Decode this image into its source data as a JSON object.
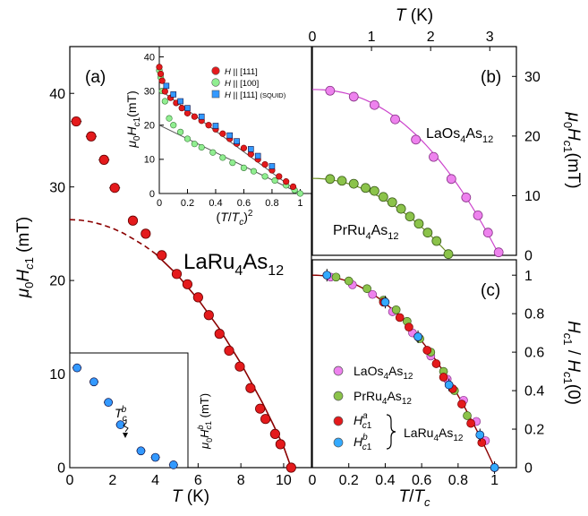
{
  "chart_data": [
    {
      "panel": "(a)",
      "type": "scatter",
      "title": "LaRu4As12",
      "xlabel": "T (K)",
      "ylabel": "μ0Hc1 (mT)",
      "xlim": [
        0,
        11.3
      ],
      "ylim": [
        0,
        45
      ],
      "xticks": [
        0,
        2,
        4,
        6,
        8,
        10
      ],
      "yticks": [
        0,
        10,
        20,
        30,
        40
      ],
      "series": [
        {
          "type": "scatter",
          "color": "#e41a1c",
          "errorbars": true,
          "x": [
            0.3,
            1.0,
            1.6,
            2.1,
            2.95,
            3.55,
            4.3,
            5.0,
            5.5,
            6.0,
            6.5,
            7.0,
            7.45,
            7.95,
            8.45,
            8.9,
            9.15,
            9.6,
            9.85,
            10.35
          ],
          "y": [
            37.0,
            35.4,
            32.9,
            29.9,
            26.4,
            25.0,
            22.7,
            20.7,
            19.6,
            18.2,
            16.3,
            14.3,
            12.5,
            10.8,
            8.5,
            6.3,
            5.2,
            3.6,
            2.5,
            0.0
          ]
        },
        {
          "type": "line",
          "style": "dashed",
          "color": "#8b0000",
          "x": [
            0,
            0.5,
            1.0,
            1.5,
            2.0,
            2.5,
            3.0,
            3.5,
            4.0
          ],
          "y": [
            26.5,
            26.45,
            26.27,
            25.98,
            25.58,
            25.06,
            24.4,
            23.7,
            22.87
          ]
        },
        {
          "type": "line",
          "style": "solid",
          "color": "#8b0000",
          "x": [
            4.0,
            5.0,
            6.0,
            7.0,
            8.0,
            9.0,
            9.5,
            10.0,
            10.35
          ],
          "y": [
            22.87,
            20.67,
            17.98,
            14.82,
            11.14,
            6.97,
            4.67,
            2.23,
            0.0
          ]
        }
      ]
    },
    {
      "panel": "inset-top",
      "type": "scatter",
      "xlabel": "(T/Tc)^2",
      "ylabel": "μ0Hc1 (mT)",
      "xlim": [
        0,
        1.08
      ],
      "ylim": [
        0,
        43
      ],
      "xticks": [
        0,
        0.2,
        0.4,
        0.6,
        0.8,
        1
      ],
      "yticks": [
        0,
        10,
        20,
        30,
        40
      ],
      "legend": [
        {
          "label": "H || [111]",
          "marker": "circle",
          "color": "#e41a1c"
        },
        {
          "label": "H || [100]",
          "marker": "circle",
          "color": "#90ee90"
        },
        {
          "label": "H || [111] (SQUID)",
          "marker": "square",
          "color": "#3399ff"
        }
      ],
      "series": [
        {
          "name": "H || [111]",
          "x": [
            0.0,
            0.01,
            0.02,
            0.04,
            0.08,
            0.12,
            0.16,
            0.2,
            0.25,
            0.3,
            0.35,
            0.4,
            0.45,
            0.5,
            0.55,
            0.6,
            0.65,
            0.7,
            0.75,
            0.8,
            0.85,
            0.9,
            0.95
          ],
          "y": [
            37.0,
            35.0,
            33.0,
            29.9,
            28.0,
            26.5,
            25.0,
            23.5,
            22.5,
            21.3,
            20.0,
            18.8,
            17.5,
            16.0,
            14.6,
            13.3,
            11.5,
            10.0,
            8.5,
            6.8,
            5.0,
            3.5,
            2.0
          ]
        },
        {
          "name": "H || [100]",
          "x": [
            0.0,
            0.01,
            0.02,
            0.04,
            0.07,
            0.1,
            0.15,
            0.2,
            0.25,
            0.3,
            0.38,
            0.45,
            0.52,
            0.6,
            0.67,
            0.75,
            0.82,
            0.9,
            0.96,
            1.0
          ],
          "y": [
            36.0,
            34.0,
            30.0,
            27.0,
            22.0,
            20.0,
            18.0,
            16.0,
            14.5,
            13.5,
            12.0,
            10.5,
            9.0,
            7.5,
            6.5,
            5.0,
            3.8,
            2.4,
            1.0,
            0.0
          ]
        },
        {
          "name": "H || [111] (SQUID)",
          "x": [
            0.05,
            0.1,
            0.15,
            0.2,
            0.3,
            0.4,
            0.5,
            0.55,
            0.65,
            0.7,
            0.8
          ],
          "y": [
            31.5,
            29.0,
            27.0,
            25.0,
            22.5,
            19.8,
            17.0,
            15.3,
            13.0,
            11.0,
            8.0
          ]
        }
      ]
    },
    {
      "panel": "inset-bottom",
      "type": "scatter",
      "ylabel": "μ0Hc1^b (mT)",
      "annotation": "Tc^b",
      "xlim": [
        0,
        4.9
      ],
      "ylim": [
        0,
        12.3
      ],
      "series": [
        {
          "color": "#3399ff",
          "x": [
            0.3,
            1.0,
            1.6,
            2.1,
            2.95,
            3.55,
            4.3
          ],
          "y": [
            10.7,
            9.2,
            7.0,
            4.6,
            1.8,
            1.1,
            0.3
          ]
        }
      ]
    },
    {
      "panel": "(b)",
      "type": "scatter",
      "xlabel": "T (K)",
      "ylabel": "μ0Hc1 (mT)",
      "xlim": [
        0,
        3.45
      ],
      "ylim": [
        0,
        35
      ],
      "xticks": [
        0,
        1,
        2,
        3
      ],
      "yticks": [
        0,
        10,
        20,
        30
      ],
      "series": [
        {
          "name": "LaOs4As12",
          "color": "#ee82ee",
          "x": [
            0.3,
            0.7,
            1.05,
            1.4,
            1.75,
            2.05,
            2.35,
            2.6,
            2.8,
            2.97,
            3.15
          ],
          "y": [
            27.6,
            26.6,
            25.2,
            22.8,
            19.4,
            16.5,
            12.8,
            9.7,
            6.7,
            3.8,
            0.5
          ]
        },
        {
          "name": "PrRu4As12",
          "color": "#8bc34a",
          "x": [
            0.3,
            0.5,
            0.7,
            0.9,
            1.05,
            1.2,
            1.35,
            1.5,
            1.65,
            1.8,
            1.95,
            2.1,
            2.3
          ],
          "y": [
            12.8,
            12.5,
            12.0,
            11.3,
            10.8,
            9.8,
            8.9,
            7.8,
            6.5,
            5.3,
            3.8,
            2.4,
            0.2
          ]
        }
      ]
    },
    {
      "panel": "(c)",
      "type": "scatter",
      "xlabel": "T/Tc",
      "ylabel": "Hc1/Hc1(0)",
      "xlim": [
        0,
        1.12
      ],
      "ylim": [
        0,
        1.08
      ],
      "xticks": [
        0,
        0.2,
        0.4,
        0.6,
        0.8,
        1
      ],
      "yticks": [
        0,
        0.2,
        0.4,
        0.6,
        0.8,
        1
      ],
      "legend": [
        {
          "label": "LaOs4As12",
          "color": "#ee82ee"
        },
        {
          "label": "PrRu4As12",
          "color": "#8bc34a"
        },
        {
          "label": "Hc1^a",
          "color": "#e41a1c"
        },
        {
          "label": "Hc1^b",
          "color": "#33aaff"
        }
      ],
      "brace_label": "LaRu4As12",
      "series": [
        {
          "name": "LaOs4As12",
          "x": [
            0.1,
            0.22,
            0.33,
            0.44,
            0.55,
            0.65,
            0.74,
            0.83,
            0.9,
            0.95
          ],
          "y": [
            0.99,
            0.95,
            0.9,
            0.81,
            0.7,
            0.58,
            0.46,
            0.35,
            0.24,
            0.14
          ]
        },
        {
          "name": "PrRu4As12",
          "x": [
            0.13,
            0.2,
            0.3,
            0.39,
            0.46,
            0.52,
            0.59,
            0.65,
            0.72,
            0.78,
            0.85
          ],
          "y": [
            0.99,
            0.97,
            0.93,
            0.87,
            0.82,
            0.76,
            0.67,
            0.6,
            0.5,
            0.4,
            0.27
          ]
        },
        {
          "name": "Hc1^a",
          "x": [
            0.39,
            0.48,
            0.53,
            0.58,
            0.63,
            0.68,
            0.72,
            0.77,
            0.82,
            0.87,
            0.93,
            1.0
          ],
          "y": [
            0.86,
            0.78,
            0.73,
            0.68,
            0.61,
            0.54,
            0.47,
            0.41,
            0.33,
            0.23,
            0.13,
            0.0
          ]
        },
        {
          "name": "Hc1^b",
          "x": [
            0.08,
            0.4,
            0.58,
            0.75,
            0.92,
            1.0
          ],
          "y": [
            1.0,
            0.86,
            0.68,
            0.43,
            0.17,
            0.0
          ]
        }
      ]
    }
  ],
  "labels": {
    "panel_a": "(a)",
    "panel_b": "(b)",
    "panel_c": "(c)",
    "main_title": "LaRu4As12",
    "a_xlabel": "T (K)",
    "a_ylabel": "μ0Hc1 (mT)",
    "inset_xlabel": "(T/Tc)^2",
    "inset_ylabel": "μ0Hc1 (mT)",
    "bottom_inset_ylabel": "μ0Hc1^b (mT)",
    "bottom_inset_annotation": "Tc^b",
    "b_top_xlabel": "T (K)",
    "b_ylabel": "μ0Hc1 (mT)",
    "b_label_laos": "LaOs4As12",
    "b_label_prru": "PrRu4As12",
    "c_xlabel": "T/Tc",
    "c_ylabel": "Hc1/Hc1(0)",
    "c_legend_laos": "LaOs4As12",
    "c_legend_prru": "PrRu4As12",
    "c_legend_a": "Hc1^a",
    "c_legend_b": "Hc1^b",
    "c_brace_label": "LaRu4As12",
    "inset_legend_1": "H || [111]",
    "inset_legend_2": "H || [100]",
    "inset_legend_3": "H || [111] (SQUID)"
  },
  "colors": {
    "red": "#e41a1c",
    "dark_red": "#8b0000",
    "light_green": "#90ee90",
    "blue": "#3399ff",
    "violet": "#ee82ee",
    "green": "#8bc34a"
  }
}
